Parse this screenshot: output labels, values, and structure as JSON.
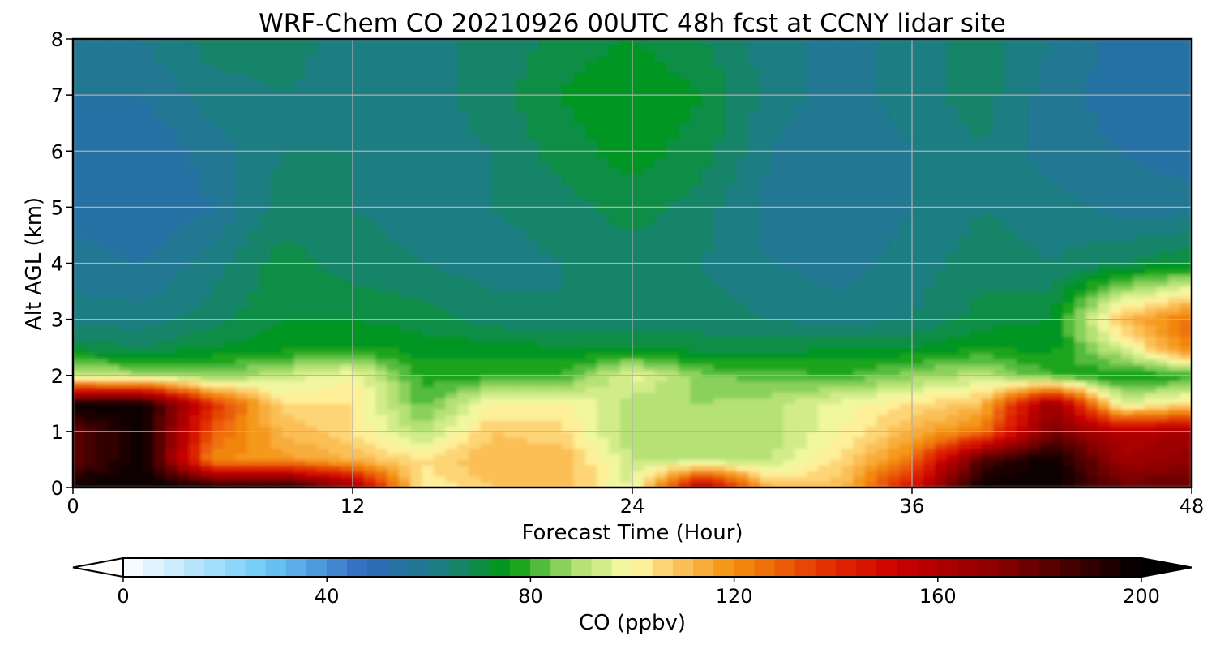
{
  "chart_data": {
    "type": "heatmap",
    "title": "WRF-Chem CO  20210926 00UTC 48h fcst at CCNY lidar site",
    "xlabel": "Forecast Time (Hour)",
    "ylabel": "Alt AGL (km)",
    "xlim": [
      0,
      48
    ],
    "ylim": [
      0,
      8
    ],
    "xticks": [
      0,
      12,
      24,
      36,
      48
    ],
    "xtick_labels": [
      "0",
      "12",
      "24",
      "36",
      "48"
    ],
    "yticks": [
      0,
      1,
      2,
      3,
      4,
      5,
      6,
      7,
      8
    ],
    "ytick_labels": [
      "0",
      "1",
      "2",
      "3",
      "4",
      "5",
      "6",
      "7",
      "8"
    ],
    "grid": true,
    "x": [
      0,
      3,
      6,
      9,
      12,
      15,
      18,
      21,
      24,
      27,
      30,
      33,
      36,
      39,
      42,
      45,
      48
    ],
    "y": [
      0,
      0.5,
      1,
      1.5,
      2,
      2.5,
      3,
      4,
      5,
      6,
      7,
      8
    ],
    "z_ppbv": [
      [
        200,
        200,
        200,
        200,
        170,
        100,
        108,
        112,
        95,
        165,
        110,
        110,
        150,
        200,
        200,
        180,
        180
      ],
      [
        180,
        200,
        120,
        118,
        112,
        104,
        112,
        112,
        92,
        90,
        92,
        105,
        125,
        185,
        200,
        165,
        170
      ],
      [
        180,
        200,
        130,
        112,
        104,
        90,
        108,
        105,
        88,
        90,
        90,
        100,
        112,
        125,
        175,
        160,
        165
      ],
      [
        200,
        200,
        140,
        105,
        104,
        82,
        100,
        102,
        90,
        88,
        90,
        98,
        104,
        110,
        170,
        95,
        105
      ],
      [
        92,
        90,
        85,
        92,
        100,
        78,
        78,
        80,
        98,
        85,
        82,
        80,
        86,
        92,
        80,
        75,
        78
      ],
      [
        70,
        68,
        72,
        74,
        76,
        74,
        74,
        72,
        72,
        70,
        70,
        72,
        72,
        76,
        74,
        95,
        125
      ],
      [
        62,
        62,
        66,
        72,
        72,
        70,
        66,
        64,
        66,
        66,
        64,
        62,
        64,
        70,
        72,
        110,
        128
      ],
      [
        58,
        56,
        62,
        70,
        66,
        64,
        62,
        64,
        66,
        64,
        60,
        58,
        62,
        66,
        64,
        68,
        72
      ],
      [
        54,
        52,
        56,
        66,
        64,
        62,
        64,
        66,
        70,
        66,
        58,
        56,
        60,
        64,
        62,
        58,
        58
      ],
      [
        52,
        52,
        58,
        64,
        64,
        62,
        64,
        70,
        74,
        70,
        60,
        56,
        60,
        64,
        58,
        56,
        54
      ],
      [
        56,
        56,
        62,
        64,
        62,
        62,
        66,
        72,
        76,
        72,
        62,
        58,
        62,
        66,
        58,
        54,
        52
      ],
      [
        60,
        60,
        66,
        66,
        62,
        64,
        64,
        70,
        72,
        68,
        62,
        58,
        62,
        66,
        60,
        54,
        52
      ]
    ],
    "colorbar": {
      "label": "CO  (ppbv)",
      "min": 0,
      "max": 200,
      "step": 4,
      "extend": "both",
      "ticks": [
        0,
        40,
        80,
        120,
        160,
        200
      ],
      "tick_labels": [
        "0",
        "40",
        "80",
        "120",
        "160",
        "200"
      ],
      "colormap": [
        {
          "v": 0,
          "c": "#ffffff"
        },
        {
          "v": 28,
          "c": "#6ccbf7"
        },
        {
          "v": 48,
          "c": "#2f68bd"
        },
        {
          "v": 64,
          "c": "#19807a"
        },
        {
          "v": 76,
          "c": "#009a0e"
        },
        {
          "v": 88,
          "c": "#a6dc6a"
        },
        {
          "v": 100,
          "c": "#fffcaa"
        },
        {
          "v": 108,
          "c": "#fcc865"
        },
        {
          "v": 120,
          "c": "#f4900e"
        },
        {
          "v": 140,
          "c": "#e02800"
        },
        {
          "v": 152,
          "c": "#cc0000"
        },
        {
          "v": 172,
          "c": "#8a0000"
        },
        {
          "v": 200,
          "c": "#000000"
        }
      ]
    }
  }
}
